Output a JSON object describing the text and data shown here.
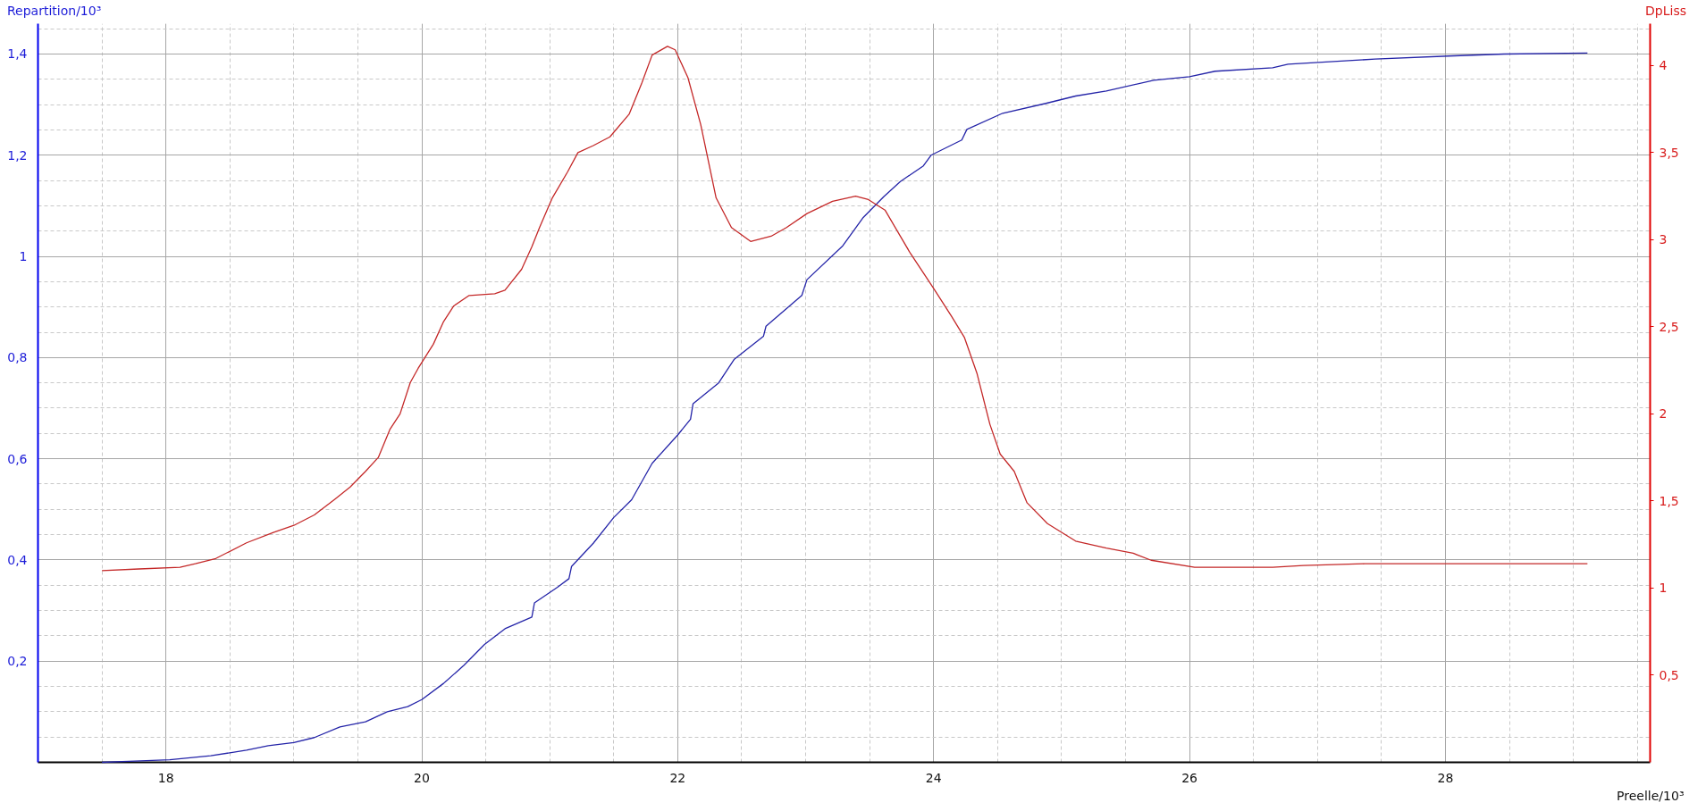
{
  "chart_data": {
    "type": "line",
    "ylabel": "Repartition/10³",
    "y2label": "DpLiss",
    "xlabel": "Preelle/10³",
    "xlim": [
      17,
      29.6
    ],
    "xticks": [
      18,
      20,
      22,
      24,
      26,
      28
    ],
    "ylim": [
      0,
      1.46
    ],
    "yticks": [
      {
        "value": 0.2,
        "label": "0,2"
      },
      {
        "value": 0.4,
        "label": "0,4"
      },
      {
        "value": 0.6,
        "label": "0,6"
      },
      {
        "value": 0.8,
        "label": "0,8"
      },
      {
        "value": 1,
        "label": "1"
      },
      {
        "value": 1.2,
        "label": "1,2"
      },
      {
        "value": 1.4,
        "label": "1,4"
      }
    ],
    "y2lim": [
      0,
      4.24
    ],
    "y2ticks": [
      {
        "value": 0.5,
        "label": "0,5"
      },
      {
        "value": 1,
        "label": "1"
      },
      {
        "value": 1.5,
        "label": "1,5"
      },
      {
        "value": 2,
        "label": "2"
      },
      {
        "value": 2.5,
        "label": "2,5"
      },
      {
        "value": 3,
        "label": "3"
      },
      {
        "value": 3.5,
        "label": "3,5"
      },
      {
        "value": 4,
        "label": "4"
      }
    ],
    "grid": true,
    "line_style": "solid",
    "series": [
      {
        "color": "#2424a8",
        "axis": "y",
        "x": [
          17.5,
          17.71,
          18.03,
          18.35,
          18.63,
          18.8,
          19.0,
          19.16,
          19.36,
          19.56,
          19.73,
          19.89,
          20.0,
          20.17,
          20.33,
          20.49,
          20.65,
          20.86,
          20.88,
          21.06,
          21.15,
          21.17,
          21.34,
          21.5,
          21.64,
          21.8,
          22.0,
          22.1,
          22.12,
          22.32,
          22.44,
          22.67,
          22.69,
          22.97,
          23.01,
          23.29,
          23.45,
          23.61,
          23.74,
          23.92,
          23.98,
          24.22,
          24.26,
          24.54,
          24.87,
          25.11,
          25.35,
          25.72,
          26.0,
          26.2,
          26.65,
          26.77,
          27.45,
          28.02,
          28.46,
          29.11
        ],
        "values": [
          0.0,
          0.002,
          0.005,
          0.013,
          0.024,
          0.033,
          0.039,
          0.049,
          0.07,
          0.08,
          0.1,
          0.11,
          0.124,
          0.156,
          0.192,
          0.233,
          0.264,
          0.287,
          0.315,
          0.346,
          0.363,
          0.387,
          0.433,
          0.484,
          0.519,
          0.591,
          0.647,
          0.678,
          0.709,
          0.75,
          0.796,
          0.842,
          0.862,
          0.923,
          0.954,
          1.021,
          1.077,
          1.118,
          1.148,
          1.179,
          1.2,
          1.23,
          1.251,
          1.283,
          1.302,
          1.317,
          1.327,
          1.348,
          1.355,
          1.366,
          1.373,
          1.38,
          1.39,
          1.396,
          1.4,
          1.402
        ]
      },
      {
        "color": "#c42828",
        "axis": "y2",
        "x": [
          17.5,
          17.79,
          18.11,
          18.23,
          18.39,
          18.63,
          18.84,
          19.0,
          19.16,
          19.32,
          19.44,
          19.56,
          19.66,
          19.75,
          19.83,
          19.91,
          19.97,
          20.09,
          20.17,
          20.25,
          20.37,
          20.57,
          20.65,
          20.78,
          20.86,
          20.92,
          21.02,
          21.14,
          21.22,
          21.34,
          21.47,
          21.62,
          21.72,
          21.8,
          21.92,
          21.98,
          22.08,
          22.18,
          22.3,
          22.42,
          22.57,
          22.73,
          22.85,
          23.01,
          23.21,
          23.39,
          23.49,
          23.62,
          23.82,
          24.0,
          24.14,
          24.24,
          24.34,
          24.44,
          24.52,
          24.63,
          24.73,
          24.89,
          25.11,
          25.35,
          25.56,
          25.7,
          26.04,
          26.16,
          26.65,
          26.89,
          27.37,
          28.06,
          29.11
        ],
        "values": [
          1.1,
          1.11,
          1.12,
          1.14,
          1.17,
          1.26,
          1.32,
          1.36,
          1.42,
          1.51,
          1.58,
          1.67,
          1.75,
          1.91,
          2.0,
          2.18,
          2.26,
          2.4,
          2.53,
          2.62,
          2.68,
          2.69,
          2.71,
          2.83,
          2.96,
          3.07,
          3.24,
          3.39,
          3.5,
          3.54,
          3.59,
          3.72,
          3.9,
          4.06,
          4.11,
          4.09,
          3.93,
          3.66,
          3.24,
          3.07,
          2.99,
          3.02,
          3.07,
          3.15,
          3.22,
          3.25,
          3.23,
          3.17,
          2.92,
          2.72,
          2.56,
          2.44,
          2.23,
          1.94,
          1.77,
          1.67,
          1.49,
          1.37,
          1.27,
          1.23,
          1.2,
          1.16,
          1.12,
          1.12,
          1.12,
          1.13,
          1.14,
          1.14,
          1.14
        ]
      }
    ]
  }
}
